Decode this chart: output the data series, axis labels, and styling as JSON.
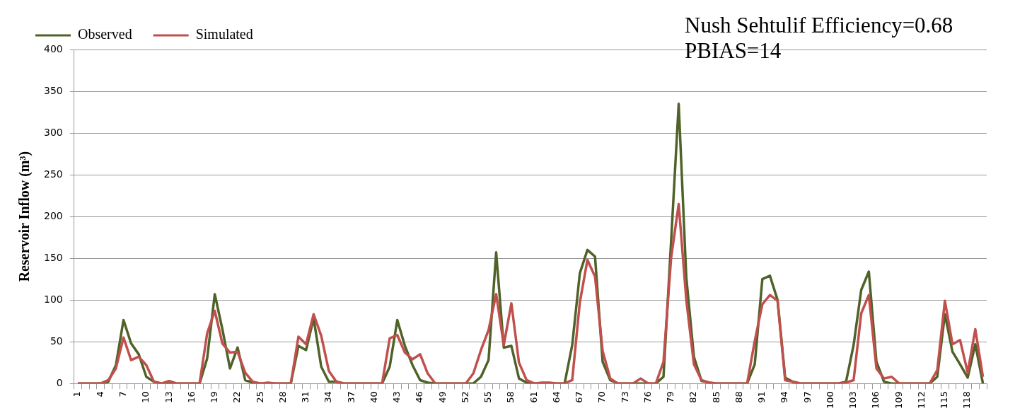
{
  "chart_data": {
    "type": "line",
    "ylabel": "Reservoir Inflow (m³)",
    "annotations": [
      "Nush Sehtulif Efficiency=0.68",
      "PBIAS=14"
    ],
    "categories": [
      "1",
      null,
      null,
      "4",
      null,
      null,
      "7",
      null,
      null,
      "10",
      null,
      null,
      "13",
      null,
      null,
      "16",
      null,
      null,
      "19",
      null,
      null,
      "22",
      null,
      null,
      "25",
      null,
      null,
      "28",
      null,
      null,
      "31",
      null,
      null,
      "34",
      null,
      null,
      "37",
      null,
      null,
      "40",
      null,
      null,
      "43",
      null,
      null,
      "46",
      null,
      null,
      "49",
      null,
      null,
      "52",
      null,
      null,
      "55",
      null,
      null,
      "58",
      null,
      null,
      "61",
      null,
      null,
      "64",
      null,
      null,
      "67",
      null,
      null,
      "70",
      null,
      null,
      "73",
      null,
      null,
      "76",
      null,
      null,
      "79",
      null,
      null,
      "82",
      null,
      null,
      "85",
      null,
      null,
      "88",
      null,
      null,
      "91",
      null,
      null,
      "94",
      null,
      null,
      "97",
      null,
      null,
      "100",
      null,
      null,
      "103",
      null,
      null,
      "106",
      null,
      null,
      "109",
      null,
      null,
      "112",
      null,
      null,
      "115",
      null,
      null,
      "118",
      null,
      null
    ],
    "series": [
      {
        "name": "Observed",
        "color": "#4f6228",
        "values": [
          0,
          0,
          0,
          0,
          2,
          22,
          76,
          48,
          35,
          8,
          2,
          0,
          0,
          0,
          0,
          0,
          0,
          30,
          107,
          65,
          18,
          43,
          4,
          1,
          0,
          0,
          0,
          0,
          0,
          45,
          40,
          78,
          20,
          2,
          2,
          0,
          0,
          0,
          0,
          0,
          0,
          20,
          76,
          45,
          22,
          4,
          1,
          0,
          0,
          0,
          0,
          0,
          0,
          8,
          28,
          157,
          43,
          45,
          6,
          1,
          0,
          0,
          0,
          0,
          0,
          46,
          132,
          160,
          152,
          26,
          4,
          0,
          0,
          0,
          0,
          0,
          0,
          8,
          170,
          335,
          127,
          32,
          3,
          1,
          0,
          0,
          0,
          0,
          0,
          23,
          125,
          129,
          100,
          7,
          2,
          0,
          0,
          0,
          0,
          0,
          0,
          2,
          46,
          112,
          134,
          26,
          2,
          0,
          0,
          0,
          0,
          0,
          0,
          8,
          83,
          38,
          23,
          7,
          47,
          0
        ]
      },
      {
        "name": "Simulated",
        "color": "#c0504d",
        "values": [
          0,
          0,
          0,
          0,
          4,
          18,
          55,
          28,
          32,
          22,
          2,
          0,
          3,
          0,
          0,
          0,
          0,
          60,
          87,
          48,
          37,
          38,
          13,
          2,
          0,
          1,
          0,
          0,
          0,
          56,
          47,
          83,
          57,
          15,
          2,
          0,
          0,
          0,
          0,
          0,
          0,
          54,
          58,
          37,
          29,
          35,
          12,
          0,
          0,
          0,
          0,
          0,
          12,
          40,
          64,
          107,
          46,
          96,
          25,
          4,
          0,
          1,
          1,
          0,
          0,
          4,
          97,
          148,
          128,
          39,
          6,
          0,
          0,
          0,
          6,
          0,
          0,
          26,
          150,
          215,
          100,
          23,
          4,
          1,
          0,
          0,
          0,
          0,
          0,
          51,
          95,
          106,
          99,
          4,
          2,
          0,
          0,
          0,
          0,
          0,
          0,
          1,
          4,
          84,
          106,
          18,
          6,
          8,
          0,
          0,
          0,
          0,
          0,
          16,
          99,
          47,
          52,
          13,
          65,
          8
        ]
      }
    ],
    "ylim": [
      0,
      400
    ],
    "yticks": [
      0,
      50,
      100,
      150,
      200,
      250,
      300,
      350,
      400
    ],
    "grid": "y",
    "legend": "top left",
    "marker": "none",
    "line_style": "solid"
  }
}
